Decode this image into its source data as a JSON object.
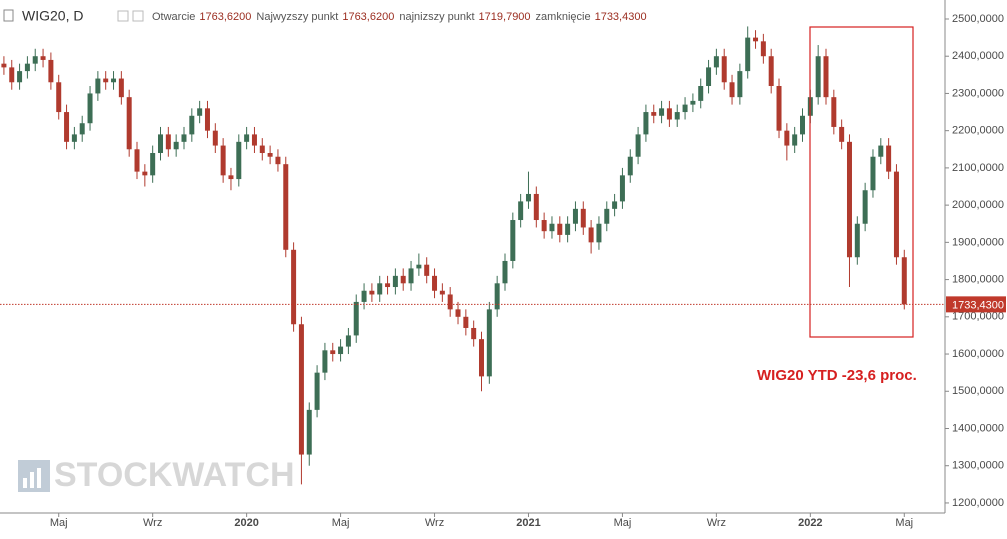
{
  "header": {
    "symbol": "WIG20, D",
    "fields": [
      {
        "label": "Otwarcie",
        "value": "1763,6200"
      },
      {
        "label": "Najwyzszy punkt",
        "value": "1763,6200"
      },
      {
        "label": "najnizszy punkt",
        "value": "1719,7900"
      },
      {
        "label": "zamknięcie",
        "value": "1733,4300"
      }
    ]
  },
  "watermark": "STOCKWATCH",
  "chart_data": {
    "type": "candlestick",
    "categories": [
      null,
      null,
      null,
      null,
      null,
      null,
      null,
      "Maj",
      null,
      null,
      null,
      null,
      null,
      null,
      null,
      null,
      null,
      null,
      null,
      "Wrz",
      null,
      null,
      null,
      null,
      null,
      null,
      null,
      null,
      null,
      null,
      null,
      "2020",
      null,
      null,
      null,
      null,
      null,
      null,
      null,
      null,
      null,
      null,
      null,
      "Maj",
      null,
      null,
      null,
      null,
      null,
      null,
      null,
      null,
      null,
      null,
      null,
      "Wrz",
      null,
      null,
      null,
      null,
      null,
      null,
      null,
      null,
      null,
      null,
      null,
      "2021",
      null,
      null,
      null,
      null,
      null,
      null,
      null,
      null,
      null,
      null,
      null,
      "Maj",
      null,
      null,
      null,
      null,
      null,
      null,
      null,
      null,
      null,
      null,
      null,
      "Wrz",
      null,
      null,
      null,
      null,
      null,
      null,
      null,
      null,
      null,
      null,
      null,
      "2022",
      null,
      null,
      null,
      null,
      null,
      null,
      null,
      null,
      null,
      null,
      null,
      "Maj"
    ],
    "open": [
      2380,
      2370,
      2330,
      2360,
      2380,
      2400,
      2390,
      2330,
      2250,
      2170,
      2190,
      2220,
      2300,
      2340,
      2330,
      2340,
      2290,
      2150,
      2090,
      2080,
      2140,
      2190,
      2150,
      2170,
      2190,
      2240,
      2260,
      2200,
      2160,
      2080,
      2070,
      2170,
      2190,
      2160,
      2140,
      2130,
      2110,
      1880,
      1680,
      1330,
      1450,
      1550,
      1610,
      1600,
      1620,
      1650,
      1740,
      1770,
      1760,
      1790,
      1780,
      1810,
      1790,
      1830,
      1840,
      1810,
      1770,
      1760,
      1720,
      1700,
      1670,
      1640,
      1540,
      1720,
      1790,
      1850,
      1960,
      2010,
      2030,
      1960,
      1930,
      1950,
      1920,
      1950,
      1990,
      1940,
      1900,
      1950,
      1990,
      2010,
      2080,
      2130,
      2190,
      2250,
      2240,
      2260,
      2230,
      2250,
      2270,
      2280,
      2320,
      2370,
      2400,
      2330,
      2290,
      2360,
      2450,
      2440,
      2400,
      2320,
      2200,
      2160,
      2190,
      2240,
      2290,
      2400,
      2290,
      2210,
      2170,
      1860,
      1950,
      2040,
      2130,
      2160,
      2090,
      1860
    ],
    "high": [
      2400,
      2390,
      2380,
      2400,
      2420,
      2420,
      2410,
      2350,
      2270,
      2210,
      2240,
      2320,
      2360,
      2360,
      2360,
      2360,
      2310,
      2170,
      2110,
      2160,
      2210,
      2210,
      2190,
      2210,
      2260,
      2280,
      2280,
      2220,
      2180,
      2100,
      2190,
      2210,
      2210,
      2180,
      2160,
      2150,
      2130,
      1900,
      1700,
      1470,
      1570,
      1630,
      1630,
      1640,
      1670,
      1760,
      1790,
      1790,
      1810,
      1810,
      1830,
      1830,
      1850,
      1870,
      1860,
      1830,
      1790,
      1780,
      1740,
      1720,
      1690,
      1660,
      1740,
      1810,
      1870,
      1980,
      2030,
      2090,
      2050,
      1980,
      1970,
      1970,
      1970,
      2010,
      2010,
      1960,
      1970,
      2010,
      2030,
      2100,
      2150,
      2210,
      2270,
      2270,
      2280,
      2280,
      2270,
      2290,
      2300,
      2340,
      2390,
      2420,
      2420,
      2350,
      2380,
      2480,
      2470,
      2460,
      2420,
      2340,
      2220,
      2210,
      2260,
      2310,
      2430,
      2420,
      2310,
      2230,
      2190,
      1970,
      2060,
      2150,
      2180,
      2180,
      2110,
      1880
    ],
    "low": [
      2350,
      2310,
      2310,
      2340,
      2360,
      2370,
      2310,
      2230,
      2150,
      2150,
      2170,
      2200,
      2280,
      2310,
      2310,
      2270,
      2130,
      2070,
      2050,
      2060,
      2120,
      2130,
      2130,
      2150,
      2170,
      2220,
      2180,
      2140,
      2060,
      2040,
      2050,
      2150,
      2140,
      2120,
      2110,
      2090,
      1860,
      1660,
      1250,
      1300,
      1430,
      1530,
      1580,
      1580,
      1600,
      1630,
      1720,
      1740,
      1740,
      1760,
      1760,
      1770,
      1770,
      1810,
      1790,
      1750,
      1740,
      1700,
      1680,
      1650,
      1620,
      1500,
      1520,
      1700,
      1770,
      1830,
      1940,
      1990,
      1940,
      1910,
      1910,
      1900,
      1900,
      1930,
      1920,
      1870,
      1880,
      1930,
      1970,
      1990,
      2060,
      2110,
      2170,
      2220,
      2220,
      2210,
      2210,
      2230,
      2250,
      2260,
      2300,
      2350,
      2310,
      2270,
      2270,
      2340,
      2420,
      2380,
      2300,
      2180,
      2120,
      2140,
      2170,
      2220,
      2270,
      2270,
      2190,
      2150,
      1780,
      1840,
      1930,
      2020,
      2110,
      2070,
      1840,
      1719.79
    ],
    "close": [
      2370,
      2330,
      2360,
      2380,
      2400,
      2390,
      2330,
      2250,
      2170,
      2190,
      2220,
      2300,
      2340,
      2330,
      2340,
      2290,
      2150,
      2090,
      2080,
      2140,
      2190,
      2150,
      2170,
      2190,
      2240,
      2260,
      2200,
      2160,
      2080,
      2070,
      2170,
      2190,
      2160,
      2140,
      2130,
      2110,
      1880,
      1680,
      1330,
      1450,
      1550,
      1610,
      1600,
      1620,
      1650,
      1740,
      1770,
      1760,
      1790,
      1780,
      1810,
      1790,
      1830,
      1840,
      1810,
      1770,
      1760,
      1720,
      1700,
      1670,
      1640,
      1540,
      1720,
      1790,
      1850,
      1960,
      2010,
      2030,
      1960,
      1930,
      1950,
      1920,
      1950,
      1990,
      1940,
      1900,
      1950,
      1990,
      2010,
      2080,
      2130,
      2190,
      2250,
      2240,
      2260,
      2230,
      2250,
      2270,
      2280,
      2320,
      2370,
      2400,
      2330,
      2290,
      2360,
      2450,
      2440,
      2400,
      2320,
      2200,
      2160,
      2190,
      2240,
      2290,
      2400,
      2290,
      2210,
      2170,
      1860,
      1950,
      2040,
      2130,
      2160,
      2090,
      1860,
      1733.43
    ],
    "up_color": "#3d6e55",
    "down_color": "#b03a2e",
    "ylim": [
      1173,
      2551
    ],
    "yticks": [
      {
        "value": 1200,
        "label": "1200,0000"
      },
      {
        "value": 1300,
        "label": "1300,0000"
      },
      {
        "value": 1400,
        "label": "1400,0000"
      },
      {
        "value": 1500,
        "label": "1500,0000"
      },
      {
        "value": 1600,
        "label": "1600,0000"
      },
      {
        "value": 1700,
        "label": "1700,0000"
      },
      {
        "value": 1800,
        "label": "1800,0000"
      },
      {
        "value": 1900,
        "label": "1900,0000"
      },
      {
        "value": 2000,
        "label": "2000,0000"
      },
      {
        "value": 2100,
        "label": "2100,0000"
      },
      {
        "value": 2200,
        "label": "2200,0000"
      },
      {
        "value": 2300,
        "label": "2300,0000"
      },
      {
        "value": 2400,
        "label": "2400,0000"
      },
      {
        "value": 2500,
        "label": "2500,0000"
      }
    ],
    "last_price": {
      "value": 1733.43,
      "label": "1733,4300"
    },
    "annotation": "WIG20 YTD -23,6 proc."
  }
}
